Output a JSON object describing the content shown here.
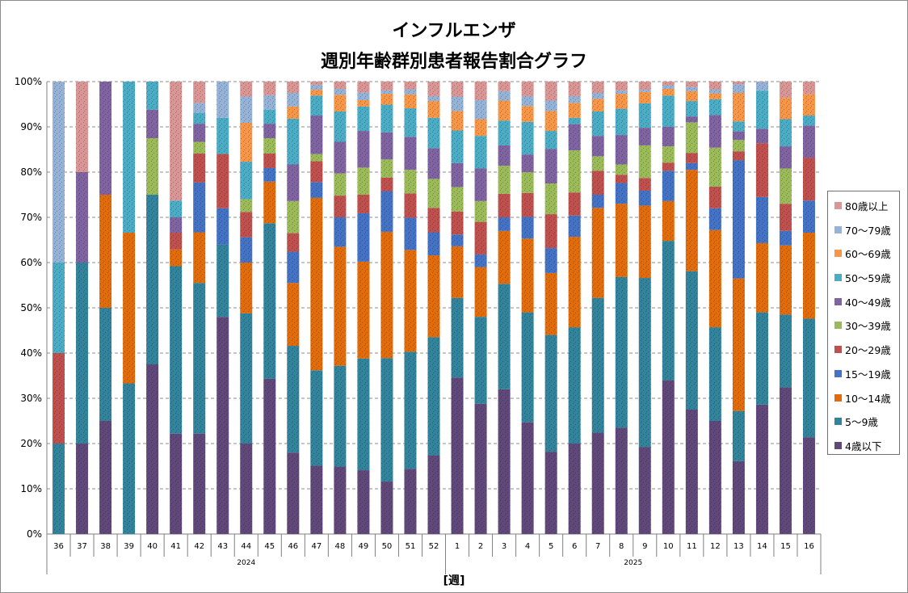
{
  "chart_data": {
    "type": "bar",
    "stacked": true,
    "title": "インフルエンザ",
    "subtitle": "週別年齢群別患者報告割合グラフ",
    "xlabel": "[週]",
    "ylabel": "",
    "ylim": [
      0,
      100
    ],
    "yticks": [
      "0%",
      "10%",
      "20%",
      "30%",
      "40%",
      "50%",
      "60%",
      "70%",
      "80%",
      "90%",
      "100%"
    ],
    "grid": true,
    "legend_position": "right",
    "categories": [
      "36",
      "37",
      "38",
      "39",
      "40",
      "41",
      "42",
      "43",
      "44",
      "45",
      "46",
      "47",
      "48",
      "49",
      "50",
      "51",
      "52",
      "1",
      "2",
      "3",
      "4",
      "5",
      "6",
      "7",
      "8",
      "9",
      "10",
      "11",
      "12",
      "13",
      "14",
      "15",
      "16"
    ],
    "year_groups": [
      {
        "label": "2024",
        "count": 17
      },
      {
        "label": "2025",
        "count": 16
      }
    ],
    "series": [
      {
        "name": "4歳以下",
        "color": "#60497A",
        "values": [
          0,
          20,
          25,
          0,
          37.5,
          22.2,
          22.2,
          48,
          20,
          34.3,
          18,
          15.1,
          14.9,
          14.1,
          11.6,
          14.4,
          17.4,
          34.6,
          28.8,
          32,
          24.7,
          18.2,
          20,
          22.4,
          23.5,
          19.2,
          34,
          27.5,
          25,
          16.1,
          28.6,
          32.4,
          21.4
        ]
      },
      {
        "name": "5～9歳",
        "color": "#31849B",
        "values": [
          20,
          40,
          25,
          33.3,
          37.5,
          37,
          33.3,
          16,
          28.8,
          34.4,
          23.6,
          21.1,
          22.3,
          24.7,
          27.3,
          25.9,
          26.1,
          17.6,
          19.2,
          23.3,
          24.3,
          25.8,
          25.7,
          29.8,
          33.3,
          37.4,
          30.8,
          30.6,
          20.7,
          11.1,
          20.4,
          16.1,
          26.2
        ]
      },
      {
        "name": "10～14歳",
        "color": "#E26B0A",
        "values": [
          0,
          0,
          25,
          33.3,
          0,
          3.7,
          11.2,
          0,
          11.2,
          9.2,
          13.9,
          38.1,
          26.3,
          21.4,
          27.9,
          22.5,
          18.1,
          11.4,
          11,
          11.7,
          16.3,
          13.7,
          20,
          19.9,
          16.2,
          16,
          8.8,
          22.4,
          21.5,
          29.3,
          15.3,
          15.3,
          19
        ]
      },
      {
        "name": "15～19歳",
        "color": "#4472C4",
        "values": [
          0,
          0,
          0,
          0,
          0,
          0,
          11,
          8,
          5.6,
          3,
          6.9,
          3.5,
          6.5,
          10.7,
          9,
          7.1,
          5.1,
          2.6,
          2.8,
          3,
          4.8,
          5.5,
          4.7,
          2.9,
          4.6,
          3.3,
          6.7,
          1.5,
          4.8,
          26.1,
          10.2,
          3.2,
          7.1
        ]
      },
      {
        "name": "20～29歳",
        "color": "#C0504D",
        "values": [
          20,
          0,
          0,
          0,
          0,
          3.7,
          6.4,
          12,
          5.6,
          3.2,
          4.1,
          4.6,
          4.8,
          4.1,
          3,
          5.4,
          5.4,
          5.1,
          7.2,
          5.2,
          5.3,
          7.5,
          5.1,
          5.3,
          1.8,
          2.8,
          1.8,
          2.2,
          4.8,
          2,
          11.9,
          6,
          9.5
        ]
      },
      {
        "name": "30～39歳",
        "color": "#9BBB59",
        "values": [
          0,
          0,
          0,
          0,
          12.5,
          0,
          2.6,
          0,
          2.8,
          3.4,
          7.1,
          1.6,
          4.9,
          6,
          4,
          5.2,
          6.4,
          5.4,
          4.6,
          6.2,
          4.6,
          6.8,
          9.3,
          3.2,
          2.3,
          7.2,
          3.6,
          6.8,
          8.6,
          2.5,
          0,
          7.8,
          0
        ]
      },
      {
        "name": "40～49歳",
        "color": "#8064A2",
        "values": [
          0,
          20,
          25,
          0,
          6.3,
          3.4,
          4,
          0,
          0,
          3.2,
          8.1,
          8.5,
          7,
          8.1,
          6,
          7.3,
          6.8,
          5.3,
          7.2,
          4.5,
          3.9,
          7.6,
          5.8,
          4.5,
          6.5,
          3.9,
          4.3,
          1.3,
          7.2,
          1.9,
          3.2,
          4.9,
          7.1
        ]
      },
      {
        "name": "50～59歳",
        "color": "#4BACC6",
        "values": [
          20,
          0,
          0,
          33.4,
          6.2,
          3.7,
          2.4,
          8,
          8.3,
          3.1,
          10.1,
          4.4,
          6.7,
          5.4,
          6.1,
          6.3,
          6.7,
          7.2,
          7.2,
          5.5,
          7.2,
          4,
          1.4,
          5.4,
          5.8,
          5.4,
          6.9,
          3.4,
          3.5,
          2.2,
          8.4,
          6,
          2.2
        ]
      },
      {
        "name": "60～69歳",
        "color": "#F79646",
        "values": [
          0,
          0,
          0,
          0,
          0,
          0,
          0,
          0,
          8.6,
          0,
          2.7,
          1.3,
          3.7,
          1.4,
          2.4,
          3.1,
          3.7,
          4.3,
          3.7,
          4.4,
          3.5,
          4.4,
          3.3,
          2.8,
          3.3,
          2.5,
          1.5,
          2.2,
          1.3,
          6.3,
          0,
          4.7,
          4.7
        ]
      },
      {
        "name": "70～79歳",
        "color": "#95B3D7",
        "values": [
          40,
          0,
          0,
          0,
          0,
          0,
          2.2,
          8,
          5.8,
          3.2,
          3,
          1.1,
          1.3,
          1.7,
          0.8,
          1.1,
          1.1,
          3.2,
          4.2,
          2.1,
          2.2,
          2.3,
          1.5,
          1.3,
          0.7,
          0.5,
          0.8,
          0.9,
          0.9,
          1.9,
          1.9,
          0,
          0
        ]
      },
      {
        "name": "80歳以上",
        "color": "#D99694",
        "values": [
          0,
          20,
          0,
          0,
          0,
          26.3,
          4.7,
          0,
          3.3,
          3,
          2.5,
          0.7,
          1.6,
          2.4,
          1.9,
          1.7,
          3.2,
          3.3,
          4.1,
          2.1,
          3.2,
          4.2,
          3.2,
          2.5,
          2,
          1.8,
          0.8,
          1.2,
          1.7,
          0.6,
          0.1,
          3.6,
          2.8
        ]
      }
    ]
  }
}
